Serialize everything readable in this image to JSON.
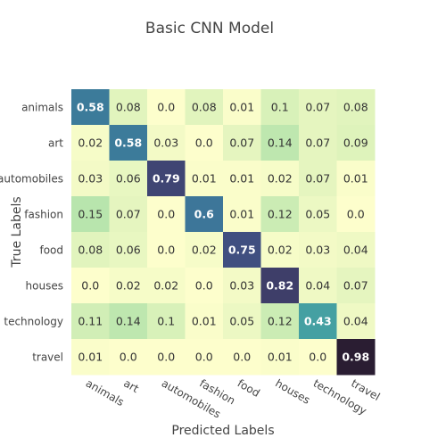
{
  "chart_data": {
    "type": "heatmap",
    "title": "Basic CNN Model",
    "xlabel": "Predicted Labels",
    "ylabel": "True Labels",
    "x_categories": [
      "animals",
      "art",
      "automobiles",
      "fashion",
      "food",
      "houses",
      "technology",
      "travel"
    ],
    "y_categories": [
      "animals",
      "art",
      "automobiles",
      "fashion",
      "food",
      "houses",
      "technology",
      "travel"
    ],
    "values": [
      [
        0.58,
        0.08,
        0.0,
        0.08,
        0.01,
        0.1,
        0.07,
        0.08
      ],
      [
        0.02,
        0.58,
        0.03,
        0.0,
        0.07,
        0.14,
        0.07,
        0.09
      ],
      [
        0.03,
        0.06,
        0.79,
        0.01,
        0.01,
        0.02,
        0.07,
        0.01
      ],
      [
        0.15,
        0.07,
        0.0,
        0.6,
        0.01,
        0.12,
        0.05,
        0.0
      ],
      [
        0.08,
        0.06,
        0.0,
        0.02,
        0.75,
        0.02,
        0.03,
        0.04
      ],
      [
        0.0,
        0.02,
        0.02,
        0.0,
        0.03,
        0.82,
        0.04,
        0.07
      ],
      [
        0.11,
        0.14,
        0.1,
        0.01,
        0.05,
        0.12,
        0.43,
        0.04
      ],
      [
        0.01,
        0.0,
        0.0,
        0.0,
        0.0,
        0.01,
        0.0,
        0.98
      ]
    ],
    "zlim": [
      0,
      1
    ],
    "colorscale": "deep",
    "legend": "none"
  }
}
